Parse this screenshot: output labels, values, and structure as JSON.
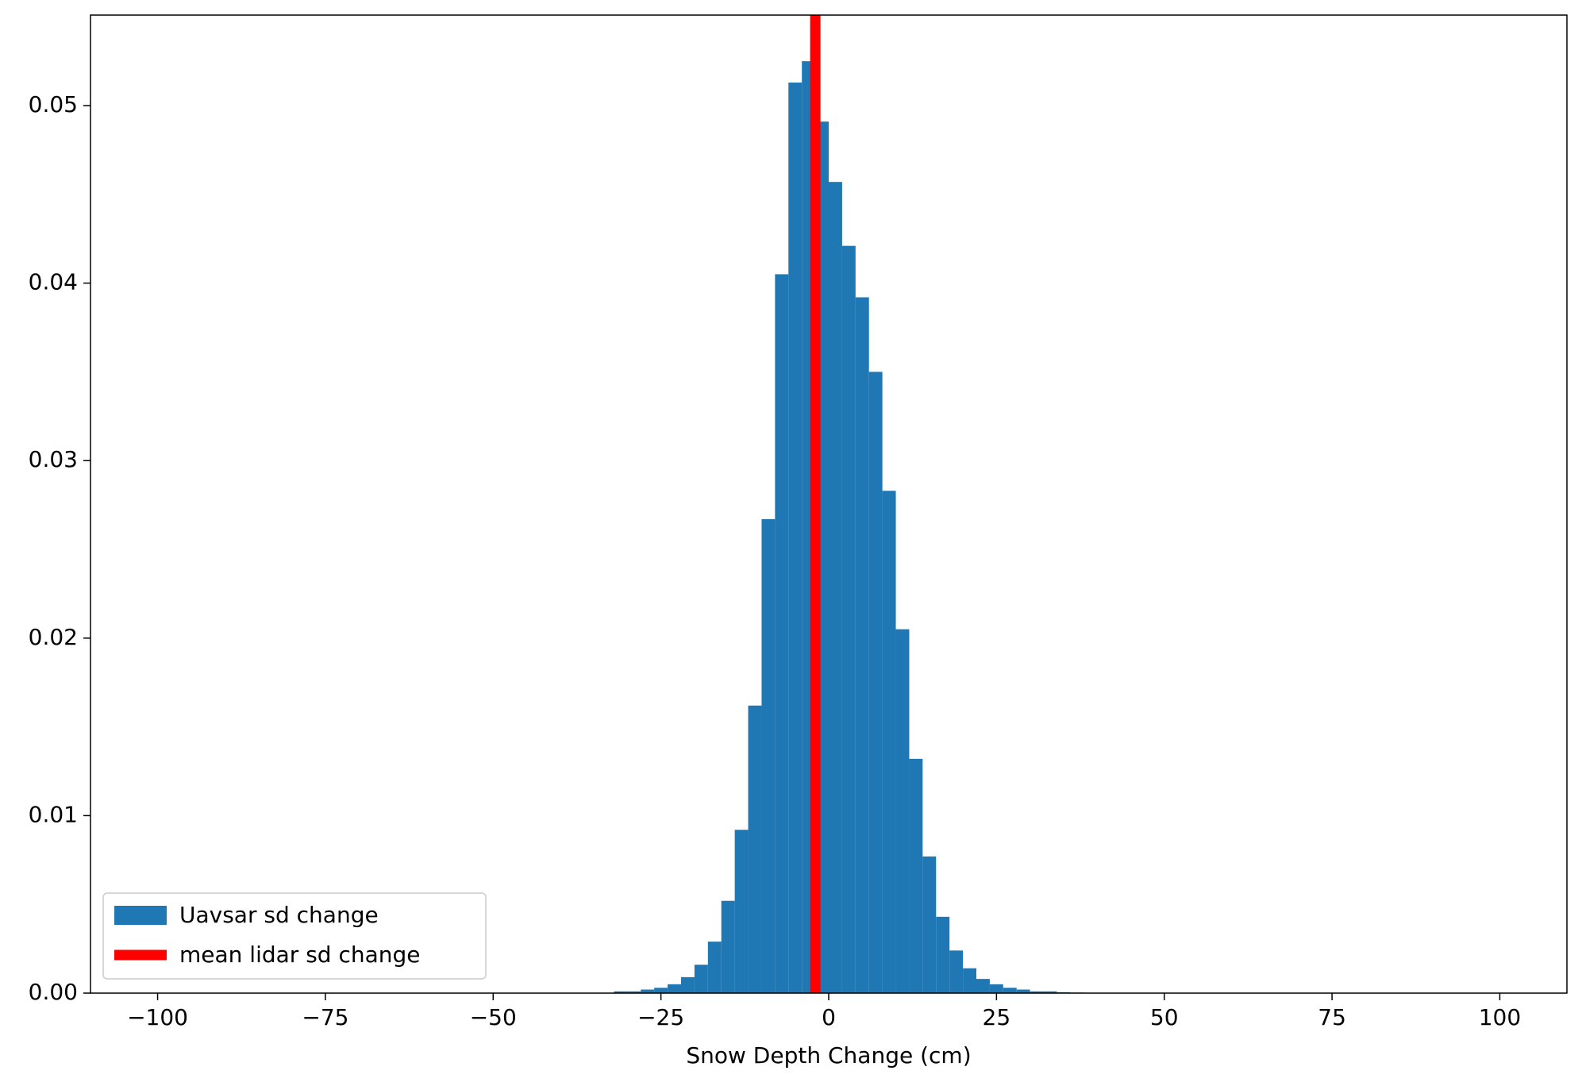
{
  "chart_data": {
    "type": "histogram",
    "xlabel": "Snow Depth Change (cm)",
    "bins": [
      -100,
      -98,
      -96,
      -94,
      -92,
      -90,
      -88,
      -86,
      -84,
      -82,
      -80,
      -78,
      -76,
      -74,
      -72,
      -70,
      -68,
      -66,
      -64,
      -62,
      -60,
      -58,
      -56,
      -54,
      -52,
      -50,
      -48,
      -46,
      -44,
      -42,
      -40,
      -38,
      -36,
      -34,
      -32,
      -30,
      -28,
      -26,
      -24,
      -22,
      -20,
      -18,
      -16,
      -14,
      -12,
      -10,
      -8,
      -6,
      -4,
      -2,
      0,
      2,
      4,
      6,
      8,
      10,
      12,
      14,
      16,
      18,
      20,
      22,
      24,
      26,
      28,
      30,
      32,
      34,
      36,
      38,
      40,
      42,
      44,
      46,
      48,
      50,
      52,
      54,
      56,
      58,
      60,
      62,
      64,
      66,
      68,
      70,
      72,
      74,
      76,
      78,
      80,
      82,
      84,
      86,
      88,
      90,
      92,
      94,
      96,
      98,
      100
    ],
    "series": [
      {
        "name": "Uavsar sd change",
        "color": "#1f77b4",
        "values": [
          0,
          0,
          0,
          0,
          0,
          0,
          0,
          0,
          0,
          0,
          0,
          0,
          0,
          0,
          0,
          0,
          0,
          0,
          0,
          0,
          0,
          0,
          0,
          0,
          0,
          0,
          0,
          0,
          0,
          0,
          0,
          0,
          0,
          0,
          0.0001,
          0.0001,
          0.0002,
          0.0003,
          0.0005,
          0.0009,
          0.0016,
          0.0029,
          0.0052,
          0.0092,
          0.0162,
          0.0267,
          0.0405,
          0.0513,
          0.0525,
          0.0491,
          0.0457,
          0.0421,
          0.0392,
          0.035,
          0.0283,
          0.0205,
          0.0132,
          0.0077,
          0.0043,
          0.0024,
          0.0014,
          0.0008,
          0.0005,
          0.0003,
          0.0002,
          0.0001,
          0.0001,
          5e-05,
          3e-05,
          0,
          0,
          0,
          0,
          0,
          0,
          0,
          0,
          0,
          0,
          0,
          0,
          0,
          0,
          0,
          0,
          0,
          0,
          0,
          0,
          0,
          0,
          0,
          0,
          0,
          0,
          0,
          0,
          0,
          0,
          0
        ]
      }
    ],
    "vline": {
      "name": "mean lidar sd change",
      "x": -2,
      "color": "#ff0000"
    },
    "xlim": [
      -110,
      110
    ],
    "xticks": [
      {
        "value": -100,
        "label": "−100"
      },
      {
        "value": -75,
        "label": "−75"
      },
      {
        "value": -50,
        "label": "−50"
      },
      {
        "value": -25,
        "label": "−25"
      },
      0,
      25,
      50,
      75,
      100
    ],
    "ylim": [
      0,
      0.0551
    ],
    "yticks": [
      {
        "value": 0,
        "label": "0.00"
      },
      0.01,
      0.02,
      0.03,
      0.04,
      0.05
    ],
    "legend": "lower left"
  }
}
